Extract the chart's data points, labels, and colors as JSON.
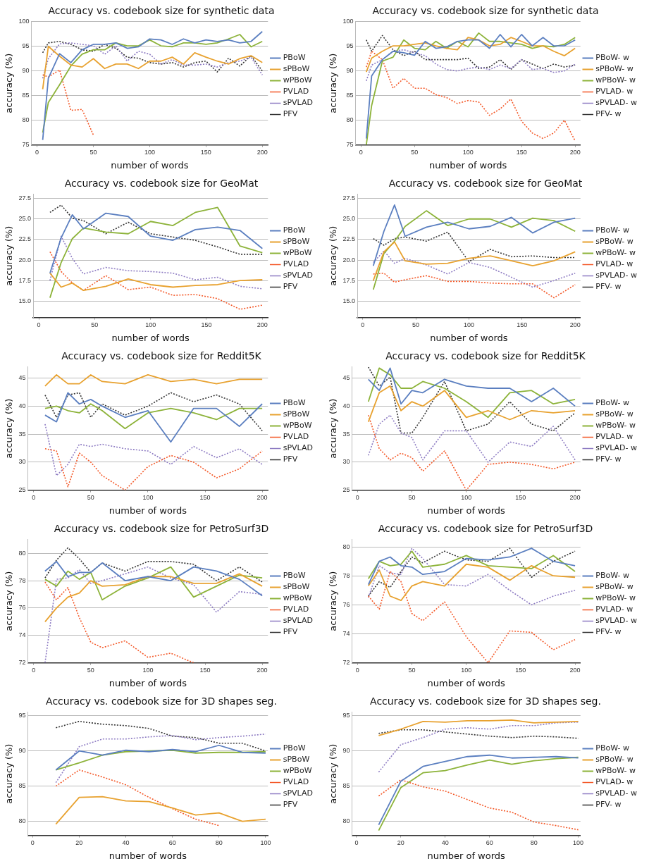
{
  "chart_data": [
    {
      "type": "line",
      "title": "Accuracy vs. codebook size for synthetic data",
      "xlabel": "number of words",
      "ylabel": "accuracy (%)",
      "legend": "right",
      "grid": "y",
      "xlim": [
        -5,
        205
      ],
      "xticks": [
        0,
        50,
        100,
        150,
        200
      ],
      "ylim": [
        75,
        100
      ],
      "yticks": [
        75,
        80,
        85,
        90,
        95,
        100
      ],
      "x": [
        5,
        10,
        20,
        30,
        40,
        50,
        60,
        70,
        80,
        90,
        100,
        110,
        120,
        130,
        140,
        150,
        160,
        170,
        180,
        190,
        200
      ],
      "series": [
        {
          "name": "PBoW",
          "color": "#5b7fc0",
          "line_style": "solid",
          "values": [
            76,
            88.5,
            93.5,
            91.7,
            94.3,
            95.4,
            95.4,
            95.7,
            94.6,
            94.9,
            96.5,
            96.3,
            95.4,
            96.5,
            95.7,
            96.3,
            96.0,
            96.3,
            95.7,
            96.0,
            98.0
          ]
        },
        {
          "name": "sPBoW",
          "color": "#e8a230",
          "line_style": "solid",
          "values": [
            86.3,
            95,
            93,
            91.2,
            90.8,
            92.5,
            90.5,
            91.4,
            91.4,
            90.5,
            92,
            92,
            92.8,
            91.4,
            93.7,
            92.8,
            92,
            91.4,
            92.5,
            93.1,
            91.7
          ]
        },
        {
          "name": "wPBoW",
          "color": "#8db33a",
          "line_style": "solid",
          "values": [
            77.5,
            83.6,
            87.2,
            91,
            93.4,
            94.3,
            94.3,
            95.7,
            95.1,
            95.1,
            96.3,
            95.1,
            94.9,
            95.7,
            95.7,
            95.4,
            95.7,
            96.5,
            97.4,
            94.9,
            96
          ]
        },
        {
          "name": "PVLAD",
          "color": "#f45a2a",
          "line_style": "dotted",
          "values": [
            89.2,
            88.8,
            90.2,
            82,
            82.2,
            77,
            null,
            null,
            null,
            null,
            null,
            null,
            null,
            null,
            null,
            null,
            null,
            null,
            null,
            null,
            null
          ]
        },
        {
          "name": "sPVLAD",
          "color": "#8e7cc3",
          "line_style": "dotted",
          "values": [
            88.5,
            92.5,
            95.5,
            95.7,
            95.4,
            95.1,
            93.4,
            95.1,
            92,
            94,
            93.4,
            91.4,
            92.3,
            91.2,
            91.2,
            91.4,
            90.8,
            91.7,
            92,
            92.8,
            89.2
          ]
        },
        {
          "name": "PFV",
          "color": "#333333",
          "line_style": "dotted",
          "values": [
            93.7,
            95.7,
            96,
            95.4,
            94.3,
            94,
            95.4,
            94.6,
            92.8,
            92.6,
            91.7,
            91.4,
            91.7,
            90.8,
            91.7,
            92,
            89.8,
            92.6,
            91,
            93.1,
            90
          ]
        }
      ]
    },
    {
      "type": "line",
      "title": "Accuracy vs. codebook size for synthetic data",
      "xlabel": "number of words",
      "ylabel": "accuracy (%)",
      "legend": "right",
      "grid": "y",
      "xlim": [
        -5,
        205
      ],
      "xticks": [
        0,
        50,
        100,
        150,
        200
      ],
      "ylim": [
        75,
        100
      ],
      "yticks": [
        75,
        80,
        85,
        90,
        95,
        100
      ],
      "x": [
        5,
        10,
        20,
        30,
        40,
        50,
        60,
        70,
        80,
        90,
        100,
        110,
        120,
        130,
        140,
        150,
        160,
        170,
        180,
        190,
        200
      ],
      "series": [
        {
          "name": "PBoW- w",
          "color": "#5b7fc0",
          "line_style": "solid",
          "values": [
            76.3,
            89,
            92.3,
            94,
            93.7,
            93.2,
            96,
            94.6,
            94.9,
            96,
            96.3,
            96.3,
            94.6,
            97.4,
            94.9,
            97.4,
            95.1,
            96.8,
            95.1,
            95.1,
            96.3
          ]
        },
        {
          "name": "sPBoW- w",
          "color": "#e8a230",
          "line_style": "solid",
          "values": [
            89.8,
            92.6,
            94,
            95.1,
            95.1,
            95.4,
            95.7,
            95.1,
            94.6,
            94.3,
            96.8,
            96.3,
            95.1,
            95.4,
            96.8,
            96,
            95.1,
            95.1,
            94,
            93.1,
            94.6
          ]
        },
        {
          "name": "wPBoW- w",
          "color": "#8db33a",
          "line_style": "solid",
          "values": [
            75,
            83,
            92,
            92.8,
            96.3,
            94.6,
            94.3,
            96,
            94.6,
            96,
            94.9,
            97.7,
            96,
            96,
            95.7,
            95.4,
            94.6,
            95.1,
            94.9,
            95.4,
            96.8
          ]
        },
        {
          "name": "PVLAD- w",
          "color": "#f45a2a",
          "line_style": "dotted",
          "values": [
            90.8,
            94,
            92.3,
            86.5,
            88.5,
            86.5,
            86.5,
            85.2,
            84.6,
            83.4,
            84,
            83.7,
            81,
            82.3,
            84.3,
            79.8,
            77.4,
            76.3,
            77.4,
            80,
            75.8
          ]
        },
        {
          "name": "sPVLAD- w",
          "color": "#8e7cc3",
          "line_style": "dotted",
          "values": [
            88,
            91.2,
            92.3,
            94,
            94.3,
            93.7,
            93.1,
            91.4,
            90.3,
            90,
            90.5,
            90.8,
            90.3,
            91.2,
            90.5,
            92.3,
            90.3,
            90.5,
            89.7,
            90,
            91.4
          ]
        },
        {
          "name": "PFV- w",
          "color": "#333333",
          "line_style": "dotted",
          "values": [
            96.3,
            94,
            97.2,
            94.3,
            93.1,
            94,
            92.3,
            92.3,
            92.3,
            92.3,
            92.6,
            90.5,
            90.8,
            92.3,
            90.3,
            92.3,
            91.4,
            90.5,
            91.4,
            90.8,
            91.2
          ]
        }
      ]
    },
    {
      "type": "line",
      "title": "Accuracy vs. codebook size for GeoMat",
      "xlabel": "number of words",
      "ylabel": "accuracy (%)",
      "legend": "right",
      "grid": "y",
      "xlim": [
        -5,
        205
      ],
      "xticks": [
        0,
        50,
        100,
        150,
        200
      ],
      "ylim": [
        13,
        28
      ],
      "yticks": [
        {
          "value": 15,
          "label": "15.0"
        },
        17.5,
        {
          "value": 20,
          "label": "20.0"
        },
        22.5,
        {
          "value": 25,
          "label": "25.0"
        },
        27.5
      ],
      "x": [
        10,
        20,
        30,
        40,
        60,
        80,
        100,
        120,
        140,
        160,
        180,
        200
      ],
      "series": [
        {
          "name": "PBoW",
          "color": "#5b7fc0",
          "line_style": "solid",
          "values": [
            18.4,
            22.7,
            25.5,
            23.8,
            25.7,
            25.3,
            22.9,
            22.4,
            23.7,
            24.0,
            23.6,
            21.4
          ]
        },
        {
          "name": "sPBoW",
          "color": "#e8a230",
          "line_style": "solid",
          "values": [
            18.4,
            16.7,
            17.2,
            16.3,
            16.8,
            17.7,
            17.0,
            16.7,
            16.9,
            17.0,
            17.5,
            17.6
          ]
        },
        {
          "name": "wPBoW",
          "color": "#8db33a",
          "line_style": "solid",
          "values": [
            15.4,
            19.7,
            22.6,
            23.9,
            23.4,
            23.2,
            24.7,
            24.2,
            25.8,
            26.4,
            21.7,
            20.9
          ]
        },
        {
          "name": "PVLAD",
          "color": "#f45a2a",
          "line_style": "dotted",
          "values": [
            21.0,
            18.6,
            17.2,
            16.3,
            18.1,
            16.4,
            16.7,
            15.7,
            15.8,
            15.3,
            14.0,
            14.5
          ]
        },
        {
          "name": "sPVLAD",
          "color": "#8e7cc3",
          "line_style": "dotted",
          "values": [
            17.5,
            22.9,
            20.2,
            18.3,
            19.1,
            18.7,
            18.6,
            18.4,
            17.6,
            17.9,
            16.8,
            16.5
          ]
        },
        {
          "name": "PFV",
          "color": "#333333",
          "line_style": "dotted",
          "values": [
            25.8,
            26.7,
            25.1,
            24.8,
            23.2,
            24.6,
            23.2,
            22.8,
            22.4,
            21.6,
            20.7,
            20.7
          ]
        }
      ]
    },
    {
      "type": "line",
      "title": "Accuracy vs. codebook size for GeoMat",
      "xlabel": "number of words",
      "ylabel": "accuracy (%)",
      "legend": "right",
      "grid": "y",
      "xlim": [
        -5,
        205
      ],
      "xticks": [
        0,
        50,
        100,
        150,
        200
      ],
      "ylim": [
        13,
        28
      ],
      "yticks": [
        {
          "value": 15,
          "label": "15.0"
        },
        17.5,
        {
          "value": 20,
          "label": "20.0"
        },
        22.5,
        {
          "value": 25,
          "label": "25.0"
        },
        27.5
      ],
      "x": [
        10,
        20,
        30,
        40,
        60,
        80,
        100,
        120,
        140,
        160,
        180,
        200
      ],
      "series": [
        {
          "name": "PBoW- w",
          "color": "#5b7fc0",
          "line_style": "solid",
          "values": [
            19.3,
            23.5,
            26.7,
            22.9,
            24.0,
            24.6,
            23.8,
            24.1,
            25.2,
            23.3,
            24.6,
            25.1
          ]
        },
        {
          "name": "sPBoW- w",
          "color": "#e8a230",
          "line_style": "solid",
          "values": [
            17.5,
            21.0,
            22.2,
            19.9,
            19.5,
            19.6,
            20.2,
            20.5,
            19.9,
            19.3,
            19.9,
            21.0
          ]
        },
        {
          "name": "wPBoW- w",
          "color": "#8db33a",
          "line_style": "solid",
          "values": [
            16.4,
            20.8,
            22.3,
            24.1,
            26.0,
            24.2,
            25.0,
            25.0,
            24.0,
            25.1,
            24.8,
            23.5
          ]
        },
        {
          "name": "PVLAD- w",
          "color": "#f45a2a",
          "line_style": "dotted",
          "values": [
            18.3,
            18.4,
            17.3,
            17.6,
            18.1,
            17.4,
            17.4,
            17.2,
            17.1,
            17.1,
            15.4,
            17.0
          ]
        },
        {
          "name": "sPVLAD- w",
          "color": "#8e7cc3",
          "line_style": "dotted",
          "values": [
            19.7,
            21.1,
            19.6,
            20.2,
            19.4,
            18.3,
            19.7,
            19.1,
            17.9,
            16.7,
            17.5,
            18.4
          ]
        },
        {
          "name": "PFV- w",
          "color": "#333333",
          "line_style": "dotted",
          "values": [
            22.6,
            21.8,
            22.6,
            22.8,
            22.3,
            23.4,
            19.8,
            21.3,
            20.4,
            20.5,
            20.3,
            20.3
          ]
        }
      ]
    },
    {
      "type": "line",
      "title": "Accuracy vs. codebook size for Reddit5K",
      "xlabel": "number of words",
      "ylabel": "accuracy (%)",
      "legend": "right",
      "grid": "y",
      "xlim": [
        -5,
        205
      ],
      "xticks": [
        0,
        50,
        100,
        150,
        200
      ],
      "ylim": [
        25,
        47
      ],
      "yticks": [
        25,
        30,
        35,
        40,
        45
      ],
      "x": [
        10,
        20,
        30,
        40,
        50,
        60,
        80,
        100,
        120,
        140,
        160,
        180,
        200
      ],
      "series": [
        {
          "name": "PBoW",
          "color": "#5b7fc0",
          "line_style": "solid",
          "values": [
            38.4,
            37.2,
            42.4,
            40.4,
            41.2,
            40.0,
            38.0,
            39.2,
            33.6,
            39.6,
            39.6,
            36.4,
            40.4
          ]
        },
        {
          "name": "sPBoW",
          "color": "#e8a230",
          "line_style": "solid",
          "values": [
            43.6,
            45.6,
            44.0,
            44.0,
            45.6,
            44.4,
            44.0,
            45.6,
            44.4,
            44.8,
            44.0,
            44.8,
            44.8
          ]
        },
        {
          "name": "wPBoW",
          "color": "#8db33a",
          "line_style": "solid",
          "values": [
            39.6,
            40.0,
            39.2,
            38.8,
            40.4,
            39.2,
            36.0,
            38.8,
            39.6,
            38.8,
            37.6,
            39.6,
            39.6
          ]
        },
        {
          "name": "PVLAD",
          "color": "#f45a2a",
          "line_style": "dotted",
          "values": [
            32.4,
            32.0,
            25.6,
            31.6,
            30.0,
            27.6,
            25.0,
            29.2,
            31.2,
            30.0,
            27.2,
            28.8,
            32.0
          ]
        },
        {
          "name": "sPVLAD",
          "color": "#8e7cc3",
          "line_style": "dotted",
          "values": [
            36.8,
            27.6,
            29.6,
            33.2,
            32.8,
            33.2,
            32.4,
            32.0,
            29.6,
            32.8,
            30.8,
            32.4,
            29.6
          ]
        },
        {
          "name": "PFV",
          "color": "#333333",
          "line_style": "dotted",
          "values": [
            42.0,
            38.0,
            42.0,
            42.4,
            38.0,
            40.4,
            38.4,
            40.0,
            42.4,
            40.8,
            42.0,
            40.4,
            35.6
          ]
        }
      ]
    },
    {
      "type": "line",
      "title": "Accuracy vs. codebook size for Reddit5K",
      "xlabel": "number of words",
      "ylabel": "accuracy (%)",
      "legend": "right",
      "grid": "y",
      "xlim": [
        -5,
        205
      ],
      "xticks": [
        0,
        50,
        100,
        150,
        200
      ],
      "ylim": [
        25,
        47
      ],
      "yticks": [
        25,
        30,
        35,
        40,
        45
      ],
      "x": [
        10,
        20,
        30,
        40,
        50,
        60,
        80,
        100,
        120,
        140,
        160,
        180,
        200
      ],
      "series": [
        {
          "name": "PBoW- w",
          "color": "#5b7fc0",
          "line_style": "solid",
          "values": [
            44.8,
            42.8,
            46.8,
            40.4,
            42.8,
            42.4,
            44.8,
            43.6,
            43.2,
            43.2,
            40.8,
            43.2,
            40.0
          ]
        },
        {
          "name": "sPBoW- w",
          "color": "#e8a230",
          "line_style": "solid",
          "values": [
            37.2,
            42.4,
            43.6,
            39.2,
            40.8,
            40.0,
            42.8,
            38.0,
            39.2,
            37.6,
            39.2,
            38.8,
            39.2
          ]
        },
        {
          "name": "wPBoW- w",
          "color": "#8db33a",
          "line_style": "solid",
          "values": [
            40.8,
            46.8,
            45.6,
            43.2,
            43.2,
            44.4,
            43.2,
            40.8,
            38.0,
            42.4,
            42.8,
            40.4,
            41.2
          ]
        },
        {
          "name": "PVLAD- w",
          "color": "#f45a2a",
          "line_style": "dotted",
          "values": [
            38.4,
            32.4,
            30.4,
            31.6,
            30.8,
            28.4,
            32.0,
            25.0,
            29.6,
            30.0,
            29.6,
            28.8,
            30.0
          ]
        },
        {
          "name": "sPVLAD- w",
          "color": "#8e7cc3",
          "line_style": "dotted",
          "values": [
            31.2,
            36.8,
            38.4,
            35.2,
            34.4,
            30.4,
            35.6,
            35.6,
            30.0,
            33.6,
            32.8,
            36.4,
            30.4
          ]
        },
        {
          "name": "PFV- w",
          "color": "#333333",
          "line_style": "dotted",
          "values": [
            47.0,
            43.6,
            45.2,
            35.2,
            35.2,
            38.0,
            44.4,
            35.6,
            36.8,
            40.8,
            36.8,
            35.6,
            38.8
          ]
        }
      ]
    },
    {
      "type": "line",
      "title": "Accuracy vs. codebook size for PetroSurf3D",
      "xlabel": "number of words",
      "ylabel": "accuracy (%)",
      "legend": "right",
      "grid": "y",
      "xlim": [
        -5,
        205
      ],
      "xticks": [
        0,
        50,
        100,
        150,
        200
      ],
      "ylim": [
        72,
        81
      ],
      "yticks": [
        72,
        74,
        76,
        78,
        80
      ],
      "x": [
        10,
        20,
        30,
        40,
        50,
        60,
        80,
        100,
        120,
        140,
        160,
        180,
        200
      ],
      "series": [
        {
          "name": "PBoW",
          "color": "#5b7fc0",
          "line_style": "solid",
          "values": [
            78.7,
            79.4,
            78.3,
            78.6,
            78.6,
            79.3,
            78.0,
            78.3,
            78.0,
            79.0,
            78.7,
            78.1,
            76.9
          ]
        },
        {
          "name": "sPBoW",
          "color": "#e8a230",
          "line_style": "solid",
          "values": [
            75.0,
            76.0,
            76.8,
            77.1,
            78.0,
            77.6,
            77.7,
            78.3,
            78.3,
            77.8,
            77.8,
            78.5,
            77.6
          ]
        },
        {
          "name": "wPBoW",
          "color": "#8db33a",
          "line_style": "solid",
          "values": [
            78.1,
            77.6,
            78.7,
            78.1,
            78.6,
            76.6,
            77.6,
            78.2,
            79.0,
            76.8,
            77.6,
            78.4,
            78.2
          ]
        },
        {
          "name": "PVLAD",
          "color": "#f45a2a",
          "line_style": "dotted",
          "values": [
            77.9,
            76.6,
            77.5,
            75.3,
            73.5,
            73.1,
            73.6,
            72.4,
            72.7,
            72.0,
            null,
            null,
            null
          ]
        },
        {
          "name": "sPVLAD",
          "color": "#8e7cc3",
          "line_style": "dotted",
          "values": [
            72.0,
            78.1,
            78.2,
            78.8,
            77.8,
            78.0,
            78.5,
            79.0,
            78.2,
            77.7,
            75.7,
            77.2,
            77.0
          ]
        },
        {
          "name": "PFV",
          "color": "#333333",
          "line_style": "dotted",
          "values": [
            78.2,
            79.5,
            80.4,
            79.6,
            78.6,
            79.3,
            78.7,
            79.4,
            79.4,
            79.2,
            78.0,
            79.0,
            77.9
          ]
        }
      ]
    },
    {
      "type": "line",
      "title": "Accuracy vs. codebook size for PetroSurf3D",
      "xlabel": "number of words",
      "ylabel": "accuracy (%)",
      "legend": "right",
      "grid": "y",
      "xlim": [
        -5,
        205
      ],
      "xticks": [
        0,
        50,
        100,
        150,
        200
      ],
      "ylim": [
        72,
        80.5
      ],
      "yticks": [
        72,
        74,
        76,
        78,
        80
      ],
      "x": [
        10,
        20,
        30,
        40,
        50,
        60,
        80,
        100,
        120,
        140,
        160,
        180,
        200
      ],
      "series": [
        {
          "name": "PBoW- w",
          "color": "#5b7fc0",
          "line_style": "solid",
          "values": [
            77.4,
            79.0,
            79.3,
            78.7,
            78.6,
            78.1,
            78.3,
            79.2,
            79.1,
            79.3,
            79.9,
            79.0,
            78.7
          ]
        },
        {
          "name": "sPBoW- w",
          "color": "#e8a230",
          "line_style": "solid",
          "values": [
            77.3,
            78.4,
            76.6,
            76.3,
            77.3,
            77.6,
            77.3,
            78.8,
            78.6,
            77.7,
            78.7,
            78.0,
            77.9
          ]
        },
        {
          "name": "wPBoW- w",
          "color": "#8db33a",
          "line_style": "solid",
          "values": [
            77.8,
            79.0,
            78.7,
            78.8,
            79.7,
            78.6,
            78.8,
            79.4,
            78.7,
            78.6,
            78.5,
            79.4,
            78.3
          ]
        },
        {
          "name": "PVLAD- w",
          "color": "#f45a2a",
          "line_style": "dotted",
          "values": [
            76.6,
            75.7,
            78.3,
            77.6,
            75.4,
            74.9,
            76.2,
            73.8,
            72.0,
            74.2,
            74.1,
            72.9,
            73.6
          ]
        },
        {
          "name": "sPVLAD- w",
          "color": "#8e7cc3",
          "line_style": "dotted",
          "values": [
            76.5,
            78.7,
            78.2,
            78.1,
            79.9,
            79.2,
            77.4,
            77.3,
            78.1,
            77.0,
            76.0,
            76.6,
            77.0
          ]
        },
        {
          "name": "PFV- w",
          "color": "#333333",
          "line_style": "dotted",
          "values": [
            76.6,
            77.6,
            77.2,
            78.3,
            79.3,
            78.9,
            79.7,
            79.1,
            79.0,
            79.9,
            77.9,
            79.0,
            79.7
          ]
        }
      ]
    },
    {
      "type": "line",
      "title": "Accuracy vs. codebook size for 3D shapes seg.",
      "xlabel": "number of words",
      "ylabel": "accuracy (%)",
      "legend": "right",
      "grid": "y",
      "xlim": [
        -2,
        101
      ],
      "xticks": [
        0,
        20,
        40,
        60,
        80,
        100
      ],
      "ylim": [
        78,
        95.5
      ],
      "yticks": [
        80,
        85,
        90,
        95
      ],
      "x": [
        10,
        20,
        30,
        40,
        50,
        60,
        70,
        80,
        90,
        100
      ],
      "series": [
        {
          "name": "PBoW",
          "color": "#5b7fc0",
          "line_style": "solid",
          "values": [
            87.3,
            90.0,
            89.4,
            90.1,
            89.9,
            90.2,
            89.9,
            90.8,
            89.8,
            89.7
          ]
        },
        {
          "name": "sPBoW",
          "color": "#e8a230",
          "line_style": "solid",
          "values": [
            79.6,
            83.4,
            83.5,
            82.9,
            82.8,
            81.9,
            80.9,
            81.2,
            80.0,
            80.3
          ]
        },
        {
          "name": "wPBoW",
          "color": "#8db33a",
          "line_style": "solid",
          "values": [
            87.3,
            88.3,
            89.4,
            89.9,
            90.0,
            90.1,
            89.7,
            89.8,
            89.8,
            89.9
          ]
        },
        {
          "name": "PVLAD",
          "color": "#f45a2a",
          "line_style": "dotted",
          "values": [
            85.0,
            87.3,
            86.3,
            85.2,
            83.4,
            81.8,
            80.3,
            79.4,
            null,
            null
          ]
        },
        {
          "name": "sPVLAD",
          "color": "#8e7cc3",
          "line_style": "dotted",
          "values": [
            85.5,
            90.6,
            91.7,
            91.7,
            92.0,
            92.2,
            91.6,
            91.9,
            92.1,
            92.4
          ]
        },
        {
          "name": "PFV",
          "color": "#333333",
          "line_style": "dotted",
          "values": [
            93.3,
            94.2,
            93.8,
            93.6,
            93.2,
            92.1,
            91.9,
            91.1,
            91.1,
            90.0
          ]
        }
      ]
    },
    {
      "type": "line",
      "title": "Accuracy vs. codebook size for 3D shapes seg.",
      "xlabel": "number of words",
      "ylabel": "accuracy (%)",
      "legend": "right",
      "grid": "y",
      "xlim": [
        -2,
        101
      ],
      "xticks": [
        0,
        20,
        40,
        60,
        80,
        100
      ],
      "ylim": [
        78,
        95.5
      ],
      "yticks": [
        80,
        85,
        90,
        95
      ],
      "x": [
        10,
        20,
        30,
        40,
        50,
        60,
        70,
        80,
        90,
        100
      ],
      "series": [
        {
          "name": "PBoW- w",
          "color": "#5b7fc0",
          "line_style": "solid",
          "values": [
            79.5,
            85.7,
            87.8,
            88.5,
            89.2,
            89.4,
            89.0,
            89.1,
            89.2,
            89.0
          ]
        },
        {
          "name": "sPBoW- w",
          "color": "#e8a230",
          "line_style": "solid",
          "values": [
            92.2,
            93.1,
            94.2,
            94.1,
            94.3,
            94.3,
            94.4,
            94.0,
            94.1,
            94.2
          ]
        },
        {
          "name": "wPBoW- w",
          "color": "#8db33a",
          "line_style": "solid",
          "values": [
            78.7,
            84.8,
            86.9,
            87.2,
            88.0,
            88.7,
            88.1,
            88.6,
            88.9,
            89.1
          ]
        },
        {
          "name": "PVLAD- w",
          "color": "#f45a2a",
          "line_style": "dotted",
          "values": [
            83.6,
            85.9,
            84.9,
            84.3,
            83.1,
            81.9,
            81.3,
            79.9,
            79.4,
            78.8
          ]
        },
        {
          "name": "sPVLAD- w",
          "color": "#8e7cc3",
          "line_style": "dotted",
          "values": [
            87.0,
            90.9,
            91.9,
            93.1,
            93.3,
            93.1,
            93.6,
            93.6,
            94.0,
            94.1
          ]
        },
        {
          "name": "PFV- w",
          "color": "#333333",
          "line_style": "dotted",
          "values": [
            92.5,
            93.0,
            93.0,
            92.7,
            92.4,
            92.1,
            91.9,
            92.1,
            92.0,
            91.8
          ]
        }
      ]
    }
  ]
}
